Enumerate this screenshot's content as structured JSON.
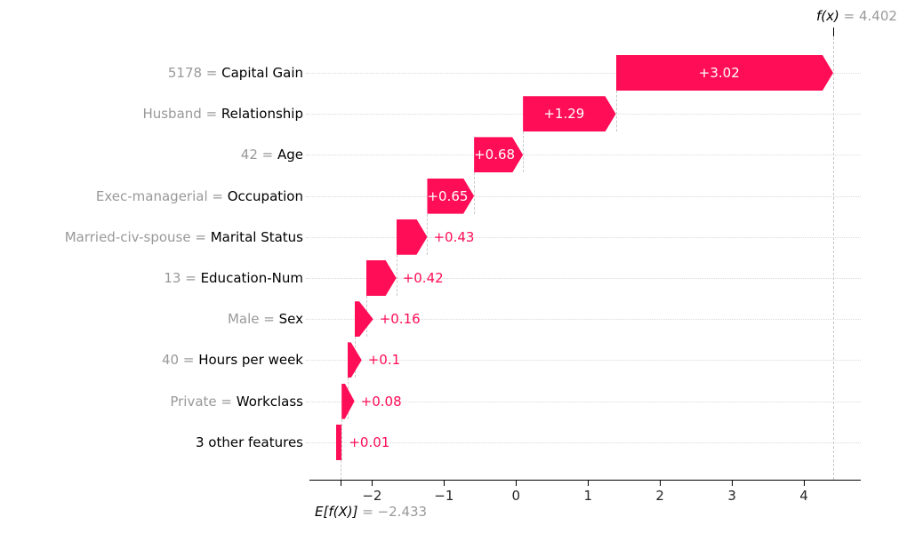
{
  "annotations": {
    "fx": {
      "label": "f(x)",
      "value": " = 4.402"
    },
    "efx": {
      "label": "E[f(X)]",
      "value": " = −2.433"
    }
  },
  "chart_data": {
    "type": "waterfall",
    "title": "",
    "orientation": "horizontal",
    "base_value": -2.433,
    "final_value": 4.402,
    "base_value_label": "E[f(X)] = −2.433",
    "final_value_label": "f(x) = 4.402",
    "positive_color": "#ff0d57",
    "inside_label_color": "#ffffff",
    "grid": "dotted horizontal row guides, dashed vertical connectors",
    "x_range": [
      -2.87,
      4.79
    ],
    "x_ticks": [
      -2,
      -1,
      0,
      1,
      2,
      3,
      4
    ],
    "x_tick_labels": [
      "−2",
      "−1",
      "0",
      "1",
      "2",
      "3",
      "4"
    ],
    "features": [
      {
        "prefix": "5178",
        "name": "Capital Gain",
        "contribution": 3.02,
        "label": "+3.02"
      },
      {
        "prefix": "Husband",
        "name": "Relationship",
        "contribution": 1.29,
        "label": "+1.29"
      },
      {
        "prefix": "42",
        "name": "Age",
        "contribution": 0.68,
        "label": "+0.68"
      },
      {
        "prefix": "Exec-managerial",
        "name": "Occupation",
        "contribution": 0.65,
        "label": "+0.65"
      },
      {
        "prefix": "Married-civ-spouse",
        "name": "Marital Status",
        "contribution": 0.43,
        "label": "+0.43"
      },
      {
        "prefix": "13",
        "name": "Education-Num",
        "contribution": 0.42,
        "label": "+0.42"
      },
      {
        "prefix": "Male",
        "name": "Sex",
        "contribution": 0.16,
        "label": "+0.16"
      },
      {
        "prefix": "40",
        "name": "Hours per week",
        "contribution": 0.1,
        "label": "+0.1"
      },
      {
        "prefix": "Private",
        "name": "Workclass",
        "contribution": 0.08,
        "label": "+0.08"
      },
      {
        "prefix": null,
        "name": "3 other features",
        "contribution": 0.01,
        "label": "+0.01"
      }
    ]
  }
}
